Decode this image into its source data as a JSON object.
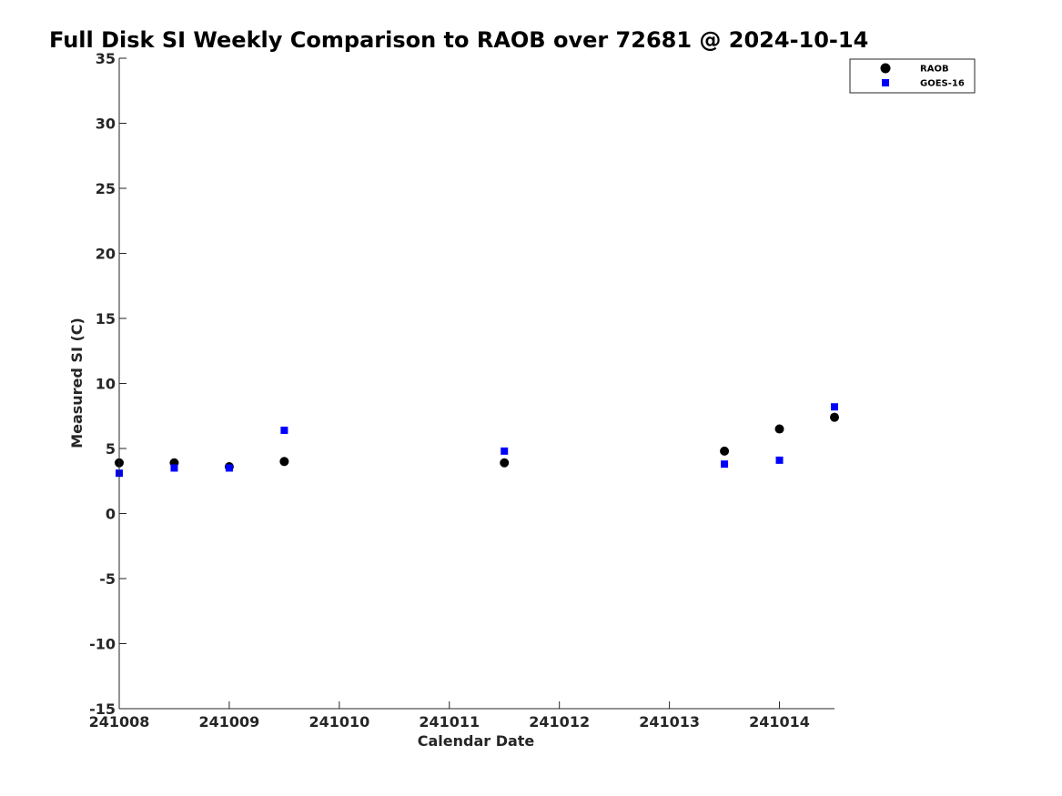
{
  "chart_data": {
    "type": "scatter",
    "title": "Full Disk SI Weekly Comparison to RAOB over 72681 @ 2024-10-14",
    "xlabel": "Calendar Date",
    "ylabel": "Measured SI (C)",
    "xlim": [
      0,
      6.5
    ],
    "ylim": [
      -15,
      35
    ],
    "x_ticks": [
      {
        "value": 0,
        "label": "241008"
      },
      {
        "value": 1,
        "label": "241009"
      },
      {
        "value": 2,
        "label": "241010"
      },
      {
        "value": 3,
        "label": "241011"
      },
      {
        "value": 4,
        "label": "241012"
      },
      {
        "value": 5,
        "label": "241013"
      },
      {
        "value": 6,
        "label": "241014"
      }
    ],
    "y_ticks": [
      -15,
      -10,
      -5,
      0,
      5,
      10,
      15,
      20,
      25,
      30,
      35
    ],
    "grid": false,
    "legend_position": "top-right",
    "series": [
      {
        "name": "RAOB",
        "color": "#000000",
        "marker": "circle",
        "x": [
          0,
          0.5,
          1,
          1.5,
          3.5,
          5.5,
          6,
          6.5
        ],
        "y": [
          3.9,
          3.9,
          3.6,
          4.0,
          3.9,
          4.8,
          6.5,
          7.4
        ]
      },
      {
        "name": "GOES-16",
        "color": "#0000ff",
        "marker": "square",
        "x": [
          0,
          0.5,
          1,
          1.5,
          3.5,
          5.5,
          6,
          6.5
        ],
        "y": [
          3.1,
          3.5,
          3.5,
          6.4,
          4.8,
          3.8,
          4.1,
          8.2
        ]
      }
    ]
  }
}
